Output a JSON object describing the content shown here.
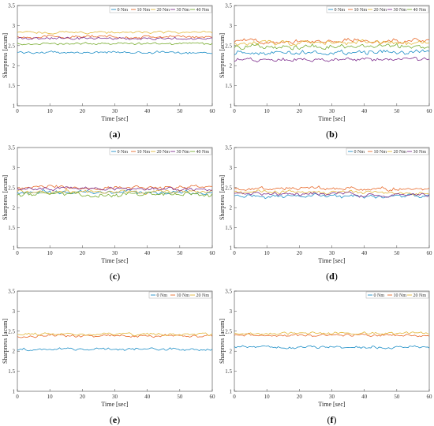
{
  "colors": {
    "0 Nm": "#1f8fc7",
    "10 Nm": "#e8692a",
    "20 Nm": "#e3b83a",
    "30 Nm": "#7e2f8e",
    "40 Nm": "#77ac30"
  },
  "chart_data": [
    {
      "type": "line",
      "panel_label": "a",
      "xlabel": "Time [sec]",
      "ylabel": "Sharpness [acum]",
      "xlim": [
        0,
        60
      ],
      "ylim": [
        1,
        3.5
      ],
      "grid": false,
      "legend": "top-right",
      "xticks": [
        0,
        10,
        20,
        30,
        40,
        50,
        60
      ],
      "yticks": [
        1,
        1.5,
        2,
        2.5,
        3,
        3.5
      ],
      "series": [
        {
          "name": "0 Nm",
          "mean": 2.33,
          "noise": 0.025
        },
        {
          "name": "10 Nm",
          "mean": 2.72,
          "noise": 0.03
        },
        {
          "name": "20 Nm",
          "mean": 2.83,
          "noise": 0.025
        },
        {
          "name": "30 Nm",
          "mean": 2.68,
          "noise": 0.03
        },
        {
          "name": "40 Nm",
          "mean": 2.55,
          "noise": 0.025
        }
      ]
    },
    {
      "type": "line",
      "panel_label": "b",
      "xlabel": "Time [sec]",
      "ylabel": "Sharpness [acum]",
      "xlim": [
        0,
        60
      ],
      "ylim": [
        1,
        3.5
      ],
      "grid": false,
      "legend": "top-right",
      "xticks": [
        0,
        10,
        20,
        30,
        40,
        50,
        60
      ],
      "yticks": [
        1,
        1.5,
        2,
        2.5,
        3,
        3.5
      ],
      "series": [
        {
          "name": "0 Nm",
          "mean": 2.33,
          "noise": 0.05
        },
        {
          "name": "10 Nm",
          "mean": 2.62,
          "noise": 0.05
        },
        {
          "name": "20 Nm",
          "mean": 2.57,
          "noise": 0.05
        },
        {
          "name": "30 Nm",
          "mean": 2.15,
          "noise": 0.04
        },
        {
          "name": "40 Nm",
          "mean": 2.48,
          "noise": 0.05
        }
      ]
    },
    {
      "type": "line",
      "panel_label": "c",
      "xlabel": "Time [sec]",
      "ylabel": "Sharpness [acum]",
      "xlim": [
        0,
        60
      ],
      "ylim": [
        1,
        3.5
      ],
      "grid": false,
      "legend": "top-right",
      "xticks": [
        0,
        10,
        20,
        30,
        40,
        50,
        60
      ],
      "yticks": [
        1,
        1.5,
        2,
        2.5,
        3,
        3.5
      ],
      "series": [
        {
          "name": "0 Nm",
          "mean": 2.38,
          "noise": 0.04
        },
        {
          "name": "10 Nm",
          "mean": 2.5,
          "noise": 0.04
        },
        {
          "name": "20 Nm",
          "mean": 2.4,
          "noise": 0.04
        },
        {
          "name": "30 Nm",
          "mean": 2.47,
          "noise": 0.04
        },
        {
          "name": "40 Nm",
          "mean": 2.33,
          "noise": 0.05
        }
      ]
    },
    {
      "type": "line",
      "panel_label": "d",
      "xlabel": "Time [sec]",
      "ylabel": "Sharpness [acum]",
      "xlim": [
        0,
        60
      ],
      "ylim": [
        1,
        3.5
      ],
      "grid": false,
      "legend": "top-right",
      "xticks": [
        0,
        10,
        20,
        30,
        40,
        50,
        60
      ],
      "yticks": [
        1,
        1.5,
        2,
        2.5,
        3,
        3.5
      ],
      "series": [
        {
          "name": "0 Nm",
          "mean": 2.28,
          "noise": 0.04
        },
        {
          "name": "10 Nm",
          "mean": 2.47,
          "noise": 0.04
        },
        {
          "name": "20 Nm",
          "mean": 2.38,
          "noise": 0.04
        },
        {
          "name": "30 Nm",
          "mean": 2.33,
          "noise": 0.04
        }
      ]
    },
    {
      "type": "line",
      "panel_label": "e",
      "xlabel": "Time [sec]",
      "ylabel": "Sharpness [acum]",
      "xlim": [
        0,
        60
      ],
      "ylim": [
        1,
        3.5
      ],
      "grid": false,
      "legend": "top-right",
      "xticks": [
        0,
        10,
        20,
        30,
        40,
        50,
        60
      ],
      "yticks": [
        1,
        1.5,
        2,
        2.5,
        3,
        3.5
      ],
      "series": [
        {
          "name": "0 Nm",
          "mean": 2.05,
          "noise": 0.03
        },
        {
          "name": "10 Nm",
          "mean": 2.38,
          "noise": 0.03
        },
        {
          "name": "20 Nm",
          "mean": 2.42,
          "noise": 0.03
        }
      ]
    },
    {
      "type": "line",
      "panel_label": "f",
      "xlabel": "Time [sec]",
      "ylabel": "Sharpness [acum]",
      "xlim": [
        0,
        60
      ],
      "ylim": [
        1,
        3.5
      ],
      "grid": false,
      "legend": "top-right",
      "xticks": [
        0,
        10,
        20,
        30,
        40,
        50,
        60
      ],
      "yticks": [
        1,
        1.5,
        2,
        2.5,
        3,
        3.5
      ],
      "series": [
        {
          "name": "0 Nm",
          "mean": 2.1,
          "noise": 0.03
        },
        {
          "name": "10 Nm",
          "mean": 2.4,
          "noise": 0.03
        },
        {
          "name": "20 Nm",
          "mean": 2.45,
          "noise": 0.03
        }
      ]
    }
  ]
}
